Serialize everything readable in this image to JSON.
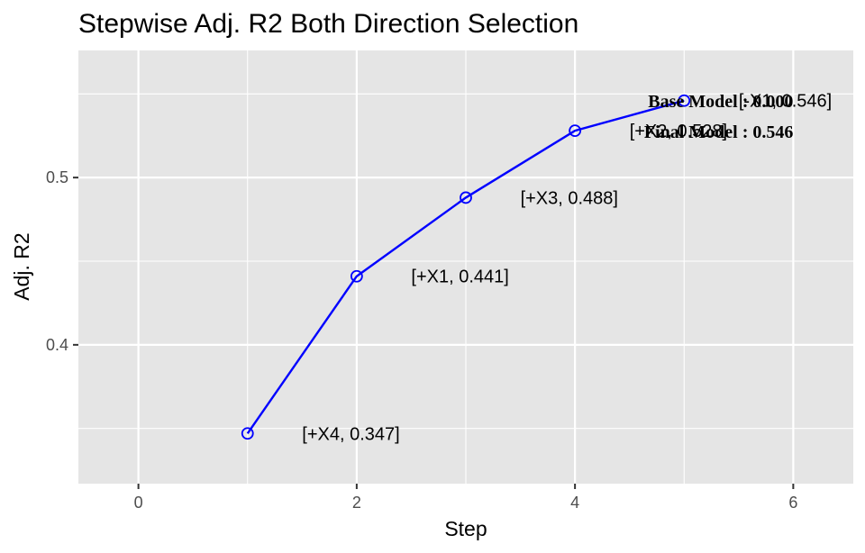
{
  "chart_data": {
    "type": "line",
    "title": "Stepwise Adj. R2 Both Direction Selection",
    "xlabel": "Step",
    "ylabel": "Adj. R2",
    "xlim": [
      -0.55,
      6.55
    ],
    "ylim": [
      0.317,
      0.576
    ],
    "x_ticks": [
      0,
      2,
      4,
      6
    ],
    "y_ticks": [
      0.4,
      0.5
    ],
    "x_minor": [
      1,
      3,
      5
    ],
    "y_minor": [
      0.35,
      0.45,
      0.55
    ],
    "grid": true,
    "legend": "none",
    "colors": {
      "panel": "#e5e5e5",
      "grid": "#ffffff",
      "line": "#0000ff"
    },
    "series": [
      {
        "x": [
          1,
          2,
          3,
          4,
          5
        ],
        "values": [
          0.347,
          0.441,
          0.488,
          0.528,
          0.546
        ],
        "labels": [
          "[+X4, 0.347]",
          "[+X1, 0.441]",
          "[+X3, 0.488]",
          "[+X2, 0.528]",
          "[-X1, 0.546]"
        ]
      }
    ],
    "annotations": [
      "Base Model  : 0.000",
      "Final Model : 0.546"
    ]
  }
}
